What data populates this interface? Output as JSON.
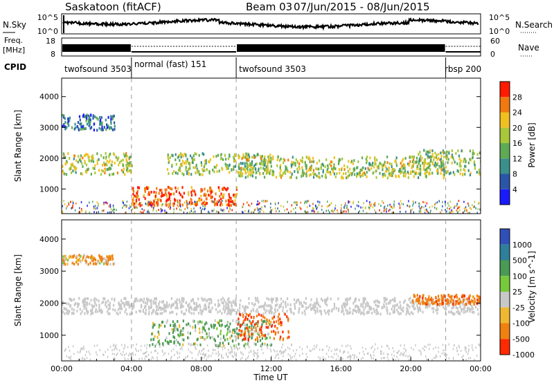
{
  "header": {
    "station": "Saskatoon (fitACF)",
    "beam": "Beam 03",
    "dates": "07/Jun/2015 - 08/Jun/2015"
  },
  "noise_panel": {
    "left_label": "N.Sky",
    "left_ticks": [
      "10^5",
      "10^0"
    ],
    "right_label": "N.Search",
    "right_ticks": [
      "10^5",
      "10^0"
    ]
  },
  "freq_panel": {
    "left_label_line1": "Freq.",
    "left_label_line2": "[MHz]",
    "left_ticks": [
      "18",
      "8"
    ],
    "right_label": "Nave",
    "right_ticks": [
      "60",
      "0"
    ]
  },
  "cpid": {
    "label": "CPID",
    "segments": [
      {
        "name": "twofsound 3503",
        "start_hour": 0,
        "end_hour": 4
      },
      {
        "name": "normal (fast) 151",
        "start_hour": 4,
        "end_hour": 10
      },
      {
        "name": "twofsound 3503",
        "start_hour": 10,
        "end_hour": 22
      },
      {
        "name": "rbsp 200",
        "start_hour": 22,
        "end_hour": 24
      }
    ]
  },
  "time_axis": {
    "label": "Time UT",
    "ticks": [
      "00:00",
      "04:00",
      "08:00",
      "12:00",
      "16:00",
      "20:00",
      "00:00"
    ],
    "range_hours": [
      0,
      24
    ]
  },
  "colors": {
    "power": [
      "#1a1aff",
      "#2a55a8",
      "#3a8f8a",
      "#5faa55",
      "#a8c83a",
      "#f0c020",
      "#f07a10",
      "#ff1a00"
    ],
    "velocity": [
      "#3050b8",
      "#2e7f9a",
      "#4a9a55",
      "#78c83c",
      "#c8c8c8",
      "#f0b830",
      "#f08010",
      "#ff2a00"
    ]
  },
  "chart_data": [
    {
      "type": "heatmap",
      "name": "power",
      "ylabel": "Slant Range [km]",
      "yticks": [
        "1000",
        "2000",
        "3000",
        "4000"
      ],
      "ylim": [
        200,
        4600
      ],
      "xlim_hours": [
        0,
        24
      ],
      "colorbar": {
        "label": "Power [dB]",
        "ticks": [
          "4",
          "8",
          "12",
          "16",
          "20",
          "24",
          "28"
        ],
        "range": [
          0,
          32
        ]
      },
      "features": [
        {
          "hours": [
            0,
            4
          ],
          "range_km": [
            1500,
            2200
          ],
          "power_db": 18
        },
        {
          "hours": [
            0,
            3
          ],
          "range_km": [
            2950,
            3450
          ],
          "power_db": 8
        },
        {
          "hours": [
            4,
            10
          ],
          "range_km": [
            500,
            1100
          ],
          "power_db": 28
        },
        {
          "hours": [
            6,
            12
          ],
          "range_km": [
            1500,
            2200
          ],
          "power_db": 16
        },
        {
          "hours": [
            10,
            22
          ],
          "range_km": [
            1400,
            2100
          ],
          "power_db": 18
        },
        {
          "hours": [
            20,
            24
          ],
          "range_km": [
            1500,
            2300
          ],
          "power_db": 16
        }
      ]
    },
    {
      "type": "heatmap",
      "name": "velocity",
      "ylabel": "Slant Range [km]",
      "yticks": [
        "1000",
        "2000",
        "3000",
        "4000"
      ],
      "ylim": [
        200,
        4600
      ],
      "xlim_hours": [
        0,
        24
      ],
      "colorbar": {
        "label": "Velocity [m s^-1]",
        "ticks": [
          "1000",
          "500",
          "100",
          "25",
          "-25",
          "-100",
          "-500",
          "-1000"
        ]
      },
      "features": [
        {
          "hours": [
            0,
            24
          ],
          "range_km": [
            1700,
            2200
          ],
          "velocity_ms": 0
        },
        {
          "hours": [
            0,
            3
          ],
          "range_km": [
            3250,
            3550
          ],
          "velocity_ms": -100
        },
        {
          "hours": [
            5,
            12
          ],
          "range_km": [
            700,
            1500
          ],
          "velocity_ms": 100
        },
        {
          "hours": [
            10,
            13
          ],
          "range_km": [
            900,
            1700
          ],
          "velocity_ms": -300
        },
        {
          "hours": [
            20,
            24
          ],
          "range_km": [
            2000,
            2300
          ],
          "velocity_ms": -200
        }
      ]
    }
  ]
}
